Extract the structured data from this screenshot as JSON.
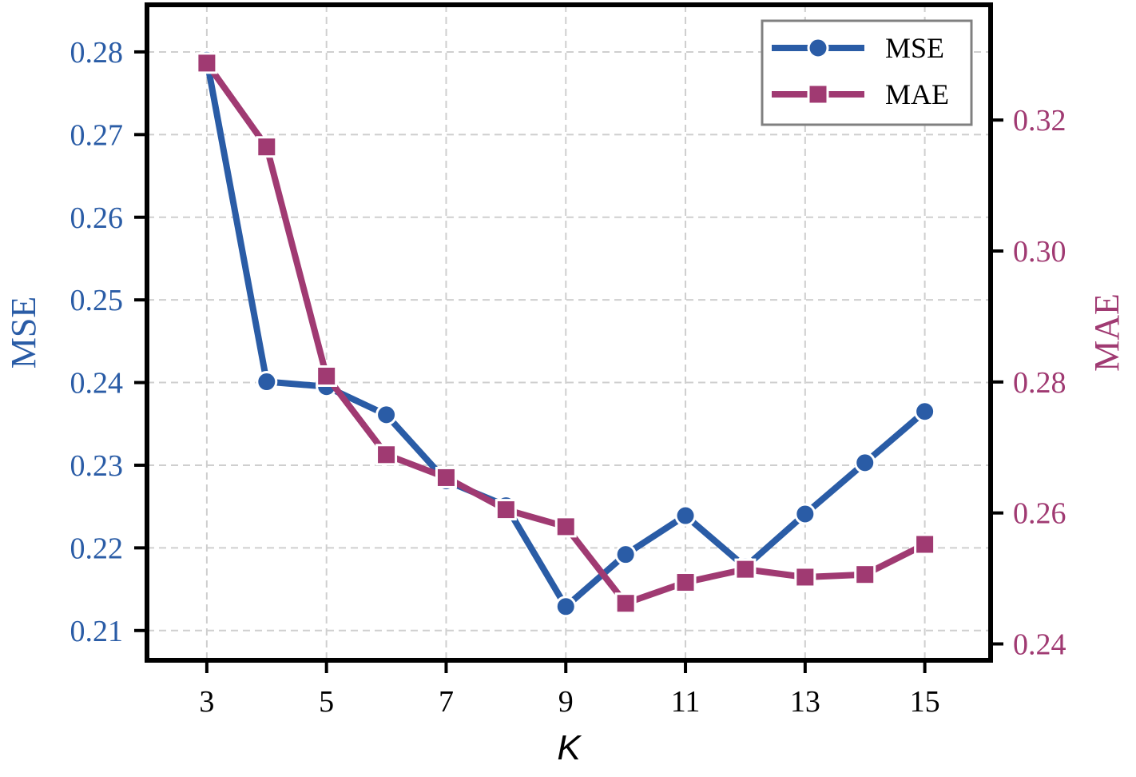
{
  "chart_data": {
    "type": "line",
    "x": [
      3,
      4,
      5,
      6,
      7,
      8,
      9,
      10,
      11,
      12,
      13,
      14,
      15
    ],
    "xticks": [
      3,
      5,
      7,
      9,
      11,
      13,
      15
    ],
    "xlim": [
      2,
      16.1
    ],
    "xlabel": "K",
    "series": [
      {
        "name": "MSE",
        "axis": "left",
        "color": "#2a5ca6",
        "marker": "circle",
        "values": [
          0.279,
          0.2401,
          0.2395,
          0.2361,
          0.2281,
          0.2251,
          0.2129,
          0.2192,
          0.2239,
          0.2177,
          0.2241,
          0.2303,
          0.2365
        ]
      },
      {
        "name": "MAE",
        "axis": "right",
        "color": "#a03a72",
        "marker": "square",
        "values": [
          0.3287,
          0.3159,
          0.2809,
          0.2689,
          0.2654,
          0.2605,
          0.2579,
          0.2462,
          0.2494,
          0.2514,
          0.2502,
          0.2506,
          0.2552
        ]
      }
    ],
    "left_axis": {
      "label": "MSE",
      "color": "#2a5ca6",
      "ylim": [
        0.2064,
        0.2857
      ],
      "ticks": [
        0.21,
        0.22,
        0.23,
        0.24,
        0.25,
        0.26,
        0.27,
        0.28
      ],
      "tick_labels": [
        "0.21",
        "0.22",
        "0.23",
        "0.24",
        "0.25",
        "0.26",
        "0.27",
        "0.28"
      ]
    },
    "right_axis": {
      "label": "MAE",
      "color": "#a03a72",
      "ylim": [
        0.2375,
        0.3376
      ],
      "ticks": [
        0.24,
        0.26,
        0.28,
        0.3,
        0.32
      ],
      "tick_labels": [
        "0.24",
        "0.26",
        "0.28",
        "0.30",
        "0.32"
      ]
    },
    "grid": true,
    "legend_position": "top-right"
  }
}
